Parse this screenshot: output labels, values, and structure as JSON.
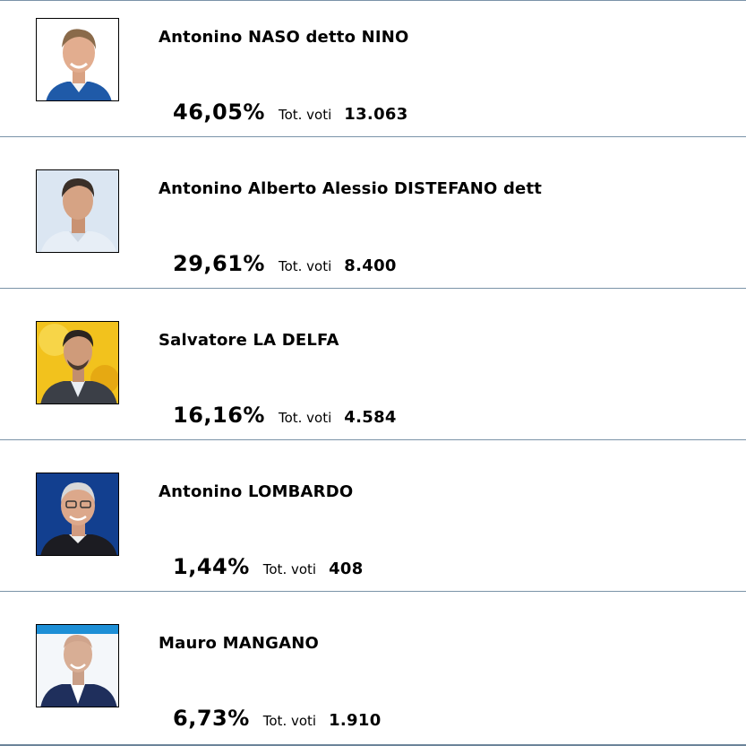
{
  "candidates": [
    {
      "name": "Antonino NASO detto NINO",
      "percent": "46,05%",
      "tot_label": "Tot. voti",
      "votes": "13.063",
      "photo_icon": "candidate-portrait-icon"
    },
    {
      "name": "Antonino Alberto Alessio DISTEFANO dett",
      "percent": "29,61%",
      "tot_label": "Tot. voti",
      "votes": "8.400",
      "photo_icon": "candidate-portrait-icon"
    },
    {
      "name": "Salvatore LA DELFA",
      "percent": "16,16%",
      "tot_label": "Tot. voti",
      "votes": "4.584",
      "photo_icon": "candidate-portrait-icon"
    },
    {
      "name": "Antonino LOMBARDO",
      "percent": "1,44%",
      "tot_label": "Tot. voti",
      "votes": "408",
      "photo_icon": "candidate-portrait-icon"
    },
    {
      "name": "Mauro MANGANO",
      "percent": "6,73%",
      "tot_label": "Tot. voti",
      "votes": "1.910",
      "photo_icon": "candidate-portrait-icon"
    }
  ],
  "colors": {
    "divider": "#7a93a8",
    "text": "#000000",
    "background": "#ffffff"
  }
}
